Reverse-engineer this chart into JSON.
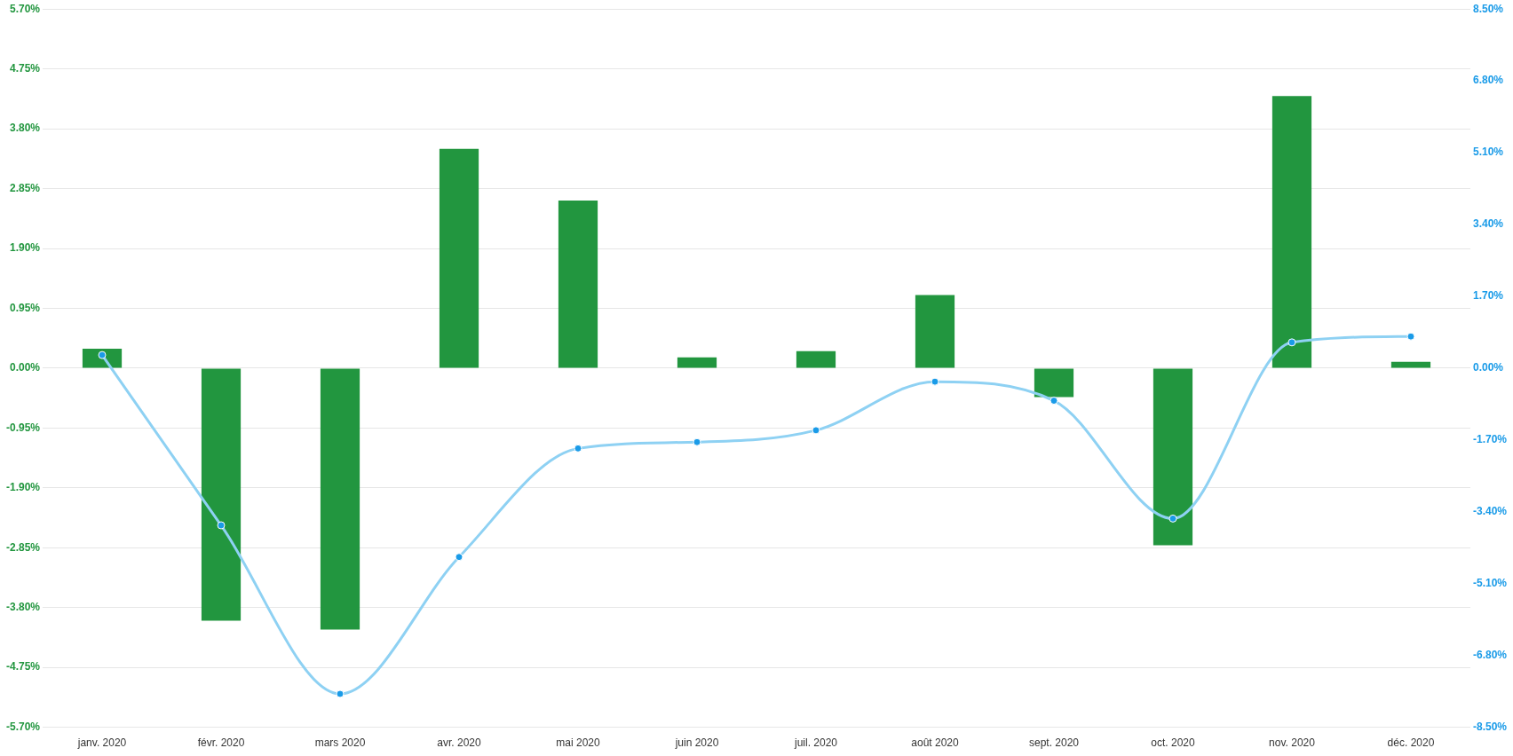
{
  "chart_data": {
    "type": "bar",
    "categories": [
      "janv. 2020",
      "févr. 2020",
      "mars 2020",
      "avr. 2020",
      "mai 2020",
      "juin 2020",
      "juil. 2020",
      "août 2020",
      "sept. 2020",
      "oct. 2020",
      "nov. 2020",
      "déc. 2020"
    ],
    "series": [
      {
        "color": "#22963f",
        "values": [
          0.31,
          -4.01,
          -4.15,
          3.48,
          2.66,
          0.17,
          0.27,
          1.16,
          -0.46,
          -2.81,
          4.32,
          0.1
        ]
      },
      {
        "type": "line",
        "axis": "y2",
        "color": "#8ed1f3",
        "marker": "circle",
        "values": [
          0.31,
          -3.72,
          -7.71,
          -4.47,
          -1.9,
          -1.75,
          -1.47,
          -0.32,
          -0.77,
          -3.56,
          0.61,
          0.75
        ]
      }
    ],
    "ylim": [
      -5.7,
      5.7
    ],
    "yticks": [
      {
        "value": -5.7,
        "label": "-5.70%"
      },
      {
        "value": -4.75,
        "label": "-4.75%"
      },
      {
        "value": -3.8,
        "label": "-3.80%"
      },
      {
        "value": -2.85,
        "label": "-2.85%"
      },
      {
        "value": -1.9,
        "label": "-1.90%"
      },
      {
        "value": -0.95,
        "label": "-0.95%"
      },
      {
        "value": 0,
        "label": "0.00%"
      },
      {
        "value": 0.95,
        "label": "0.95%"
      },
      {
        "value": 1.9,
        "label": "1.90%"
      },
      {
        "value": 2.85,
        "label": "2.85%"
      },
      {
        "value": 3.8,
        "label": "3.80%"
      },
      {
        "value": 4.75,
        "label": "4.75%"
      },
      {
        "value": 5.7,
        "label": "5.70%"
      }
    ],
    "y2lim": [
      -8.5,
      8.5
    ],
    "y2ticks": [
      {
        "value": -8.5,
        "label": "-8.50%"
      },
      {
        "value": -6.8,
        "label": "-6.80%"
      },
      {
        "value": -5.1,
        "label": "-5.10%"
      },
      {
        "value": -3.4,
        "label": "-3.40%"
      },
      {
        "value": -1.7,
        "label": "-1.70%"
      },
      {
        "value": 0,
        "label": "0.00%"
      },
      {
        "value": 1.7,
        "label": "1.70%"
      },
      {
        "value": 3.4,
        "label": "3.40%"
      },
      {
        "value": 5.1,
        "label": "5.10%"
      },
      {
        "value": 6.8,
        "label": "6.80%"
      },
      {
        "value": 8.5,
        "label": "8.50%"
      }
    ],
    "grid": "y",
    "legend": false
  }
}
